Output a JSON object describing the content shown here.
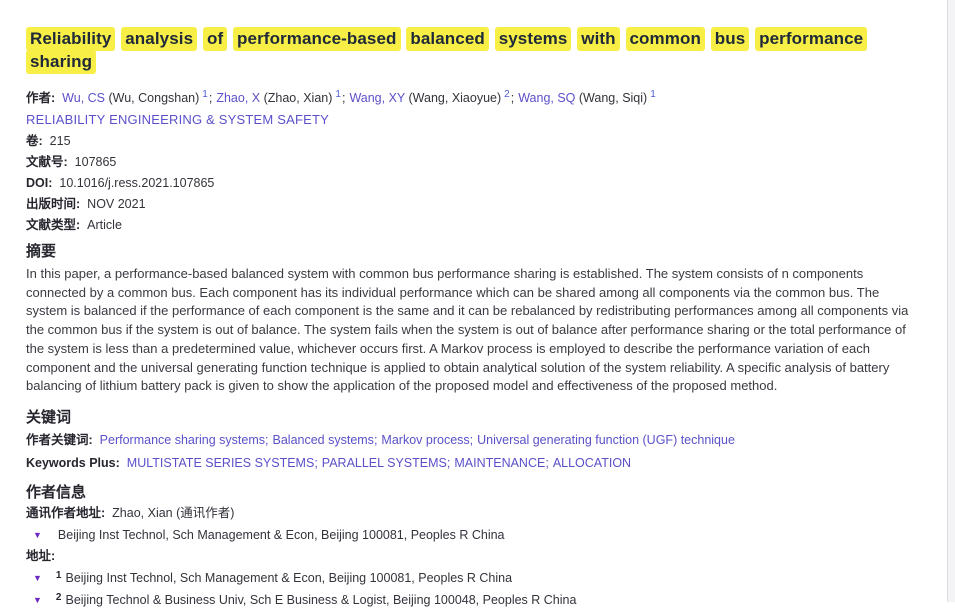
{
  "icons": {
    "triangle": "▼"
  },
  "colors": {
    "highlight": "#f7ef46",
    "link": "#5b50c9",
    "triangle": "#6d2ac0"
  },
  "article": {
    "title_words": [
      "Reliability",
      "analysis",
      "of",
      "performance-based",
      "balanced",
      "systems",
      "with",
      "common",
      "bus",
      "performance",
      "sharing"
    ],
    "authors_label": "作者:",
    "authors": [
      {
        "name": "Wu, CS",
        "full": "(Wu, Congshan)",
        "sup": "1",
        "sep": ";"
      },
      {
        "name": "Zhao, X",
        "full": "(Zhao, Xian)",
        "sup": "1",
        "sep": ";"
      },
      {
        "name": "Wang, XY",
        "full": "(Wang, Xiaoyue)",
        "sup": "2",
        "sep": ";"
      },
      {
        "name": "Wang, SQ",
        "full": "(Wang, Siqi)",
        "sup": "1",
        "sep": ""
      }
    ],
    "journal": "RELIABILITY ENGINEERING & SYSTEM SAFETY",
    "meta": [
      {
        "label": "卷:",
        "value": "215"
      },
      {
        "label": "文献号:",
        "value": "107865"
      },
      {
        "label": "DOI:",
        "value": "10.1016/j.ress.2021.107865"
      },
      {
        "label": "出版时间:",
        "value": "NOV 2021"
      },
      {
        "label": "文献类型:",
        "value": "Article"
      }
    ]
  },
  "abstract": {
    "header": "摘要",
    "text": "In this paper, a performance-based balanced system with common bus performance sharing is established. The system consists of n components connected by a common bus. Each component has its individual performance which can be shared among all components via the common bus. The system is balanced if the performance of each component is the same and it can be rebalanced by redistributing performances among all components via the common bus if the system is out of balance. The system fails when the system is out of balance after performance sharing or the total performance of the system is less than a predetermined value, whichever occurs first. A Markov process is employed to describe the performance variation of each component and the universal generating function technique is applied to obtain analytical solution of the system reliability. A specific analysis of battery balancing of lithium battery pack is given to show the application of the proposed model and effectiveness of the proposed method."
  },
  "keywords": {
    "header": "关键词",
    "author_keywords_label": "作者关键词:",
    "author_keywords": [
      {
        "label": "Performance sharing systems",
        "sep": ";"
      },
      {
        "label": "Balanced systems",
        "sep": ";"
      },
      {
        "label": "Markov process",
        "sep": ";"
      },
      {
        "label": "Universal generating function (UGF) technique",
        "sep": ""
      }
    ],
    "keywords_plus_label": "Keywords Plus:",
    "keywords_plus": [
      {
        "label": "MULTISTATE SERIES SYSTEMS",
        "sep": ";"
      },
      {
        "label": "PARALLEL SYSTEMS",
        "sep": ";"
      },
      {
        "label": "MAINTENANCE",
        "sep": ";"
      },
      {
        "label": "ALLOCATION",
        "sep": ""
      }
    ]
  },
  "author_info": {
    "header": "作者信息",
    "corresponding_label": "通讯作者地址:",
    "corresponding_value": "Zhao, Xian (通讯作者)",
    "corresponding_address": "Beijing Inst Technol, Sch Management & Econ, Beijing 100081, Peoples R China",
    "addresses_label": "地址:",
    "addresses": [
      {
        "sup": "1",
        "text": "Beijing Inst Technol, Sch Management & Econ, Beijing 100081, Peoples R China"
      },
      {
        "sup": "2",
        "text": "Beijing Technol & Business Univ, Sch E Business & Logist, Beijing 100048, Peoples R China"
      }
    ]
  }
}
